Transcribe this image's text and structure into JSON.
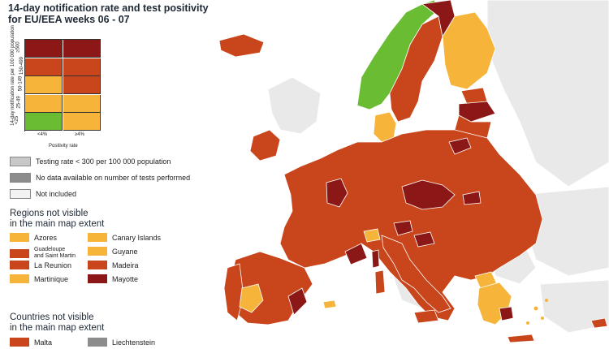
{
  "title": {
    "line1": "14-day notification rate and test positivity",
    "line2": "for EU/EEA weeks 06 - 07"
  },
  "colors": {
    "green": "#6abd33",
    "yellow": "#f6b43b",
    "orange": "#c9451b",
    "dark_red": "#8b1717",
    "light_gray": "#c8c8c8",
    "dark_gray": "#8c8c8c",
    "not_included": "#f2f2f2",
    "sea": "#ffffff"
  },
  "matrix": {
    "y_axis_label": "14-day notification rate per 100 000 population",
    "x_axis_label": "Positivity rate",
    "x_ticks": [
      "<4%",
      "≥4%"
    ],
    "y_ticks": [
      "≥500",
      "150-499",
      "50-149",
      "25-49",
      "<25"
    ],
    "cells": [
      [
        "dark_red",
        "dark_red"
      ],
      [
        "orange",
        "orange"
      ],
      [
        "yellow",
        "orange"
      ],
      [
        "yellow",
        "yellow"
      ],
      [
        "green",
        "yellow"
      ]
    ]
  },
  "legend_items": [
    {
      "label": "Testing rate < 300 per 100 000 population",
      "color": "#c8c8c8"
    },
    {
      "label": "No data available on number of tests performed",
      "color": "#8c8c8c"
    },
    {
      "label": "Not included",
      "color": "#f2f2f2"
    }
  ],
  "regions_title": {
    "line1": "Regions not visible",
    "line2": "in the main map extent"
  },
  "regions": [
    {
      "label": "Azores",
      "color": "#f6b43b"
    },
    {
      "label": "Canary Islands",
      "color": "#f6b43b"
    },
    {
      "label": "Guadeloupe and Saint Martin",
      "line1": "Guadeloupe",
      "line2": "and Saint Martin",
      "color": "#c9451b"
    },
    {
      "label": "Guyane",
      "color": "#f6b43b"
    },
    {
      "label": "La Reunion",
      "color": "#c9451b"
    },
    {
      "label": "Madeira",
      "color": "#c9451b"
    },
    {
      "label": "Martinique",
      "color": "#f6b43b"
    },
    {
      "label": "Mayotte",
      "color": "#8b1717"
    }
  ],
  "countries_title": {
    "line1": "Countries not visible",
    "line2": "in the main map extent"
  },
  "countries": [
    {
      "label": "Malta",
      "color": "#c9451b"
    },
    {
      "label": "Liechtenstein",
      "color": "#8c8c8c"
    }
  ]
}
